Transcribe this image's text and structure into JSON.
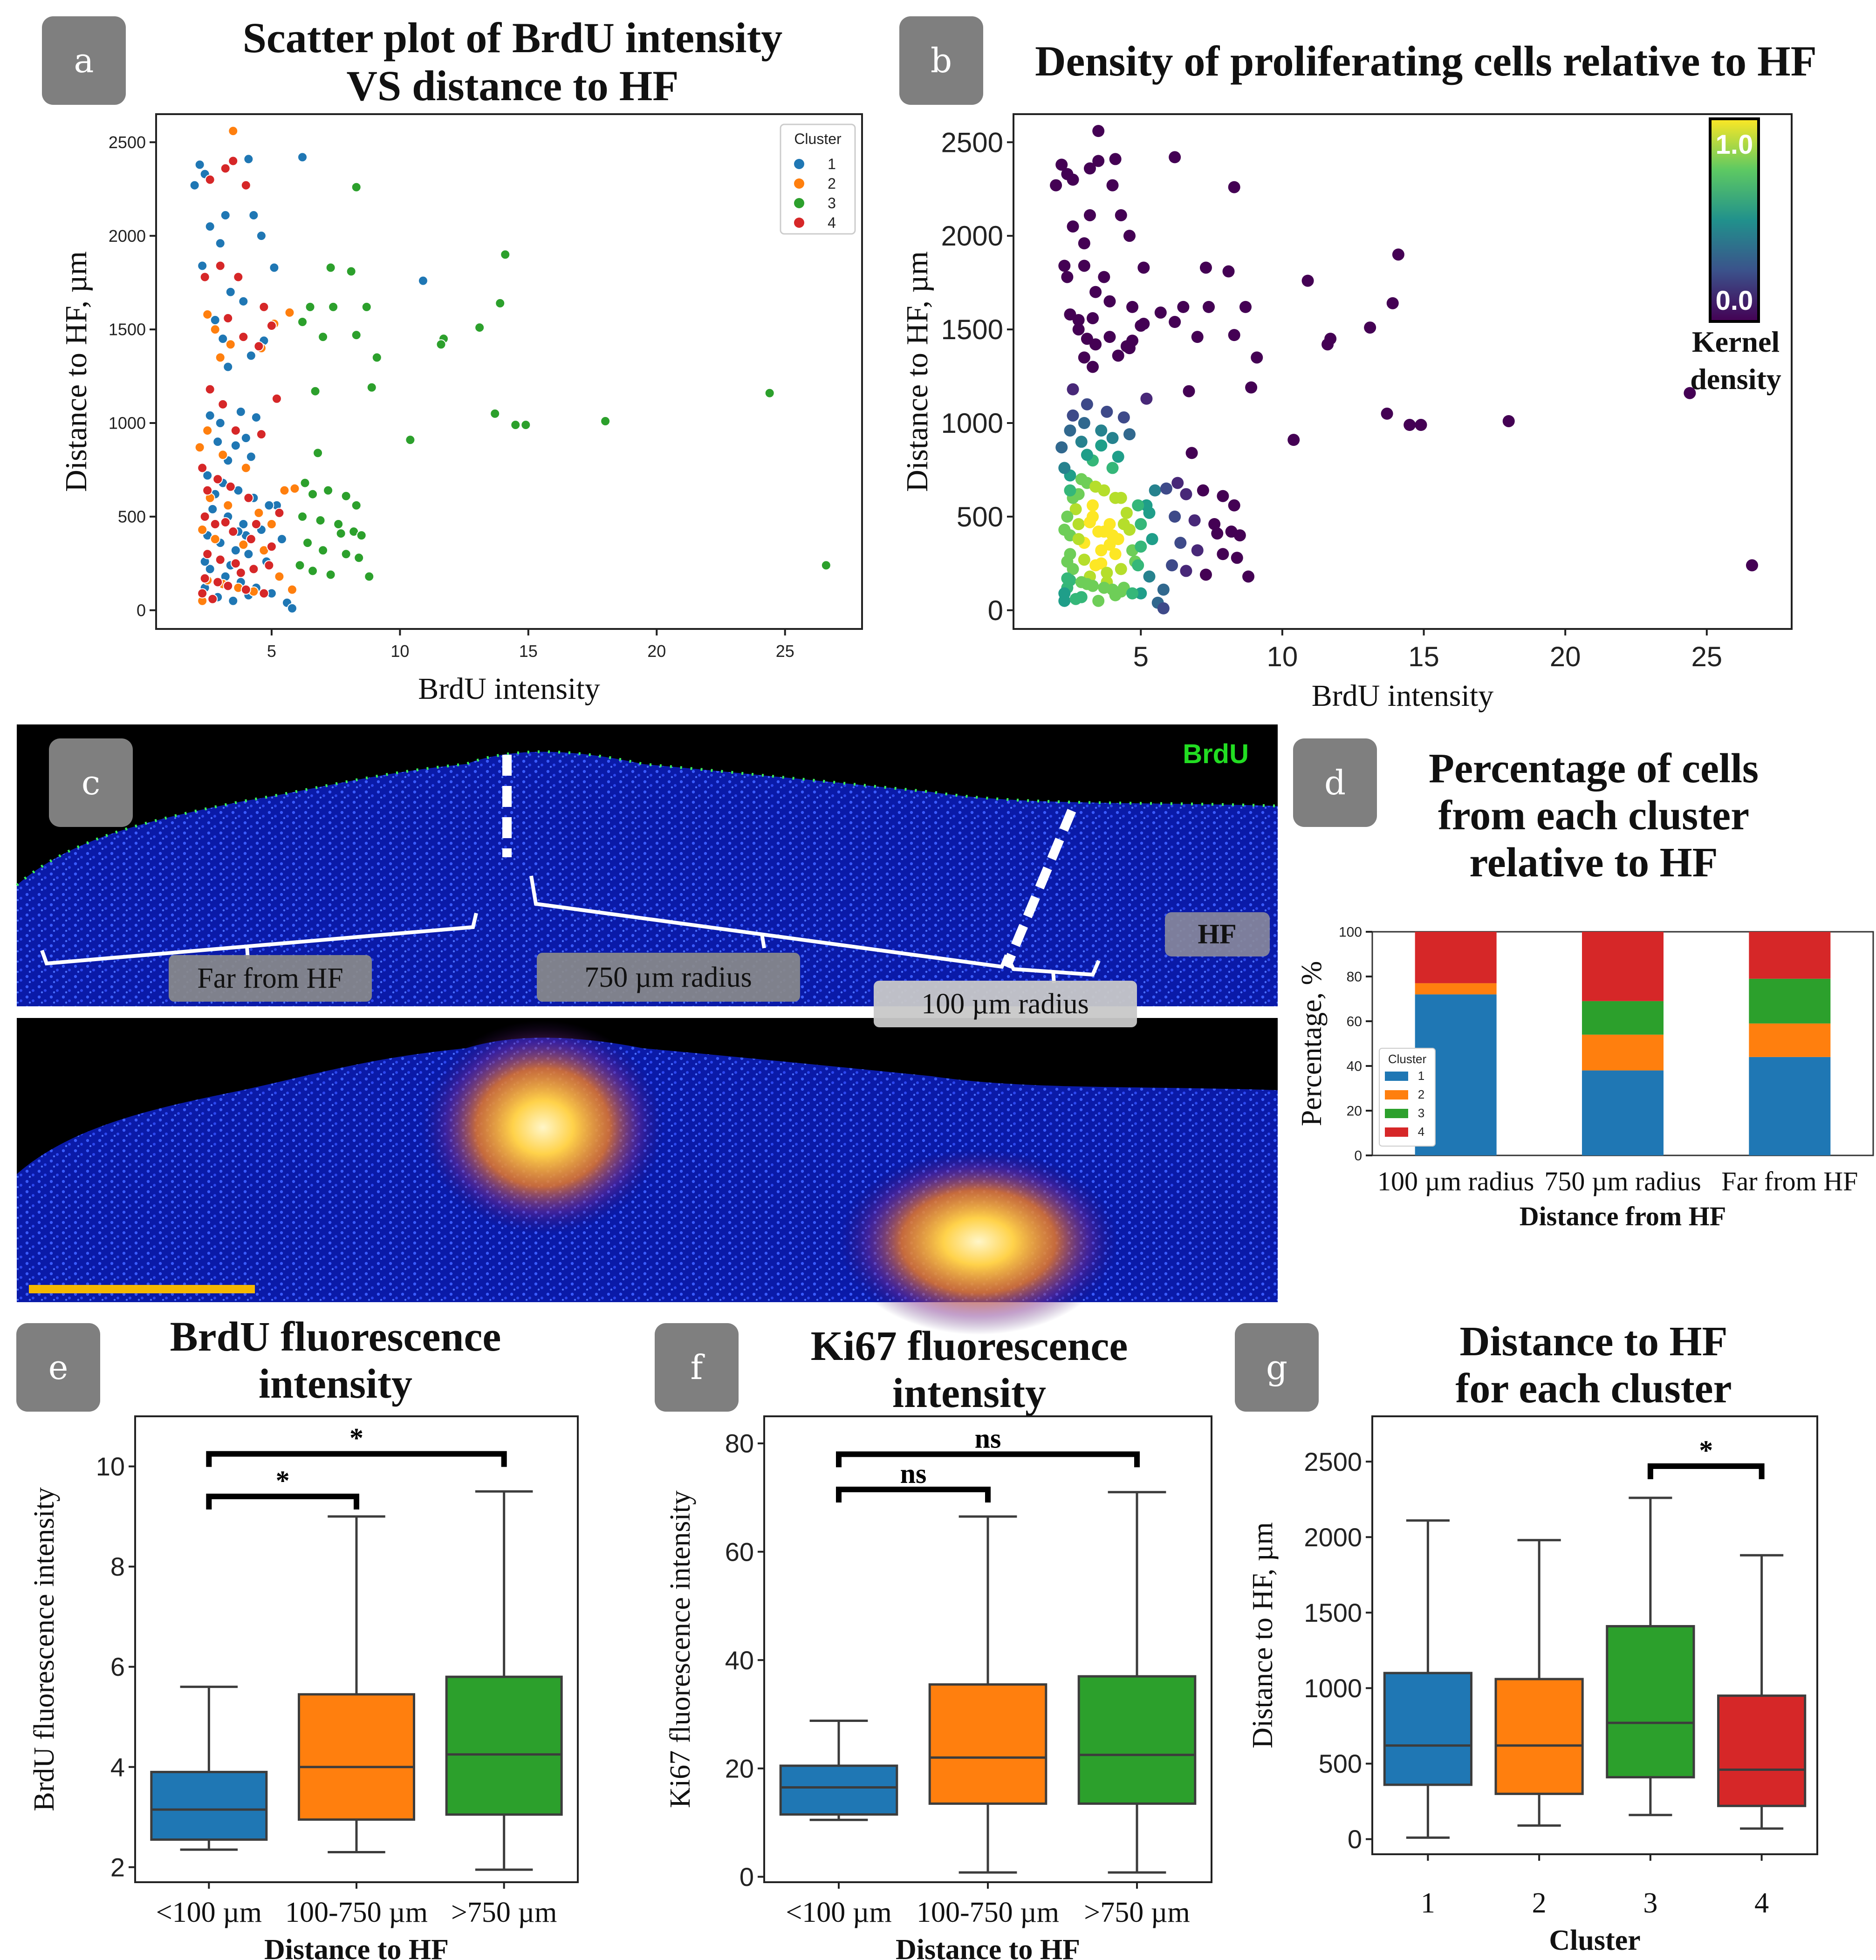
{
  "panels": {
    "a": {
      "badge": "a",
      "title_line1": "Scatter plot of BrdU intensity",
      "title_line2": "VS distance to HF"
    },
    "b": {
      "badge": "b",
      "title": "Density of proliferating cells relative to HF"
    },
    "c": {
      "badge": "c",
      "brdu_label": "BrdU",
      "hf_label": "HF",
      "far_label": "Far from HF",
      "r750_label": "750 µm radius",
      "r100_label": "100 µm radius"
    },
    "d": {
      "badge": "d",
      "title_line1": "Percentage of cells",
      "title_line2": "from each cluster",
      "title_line3": "relative to HF"
    },
    "e": {
      "badge": "e",
      "title_line1": "BrdU fluorescence",
      "title_line2": "intensity"
    },
    "f": {
      "badge": "f",
      "title_line1": "Ki67 fluorescence",
      "title_line2": "intensity"
    },
    "g": {
      "badge": "g",
      "title_line1": "Distance to HF",
      "title_line2": "for each cluster"
    }
  },
  "colors": {
    "c1": "#1f77b4",
    "c2": "#ff7f0e",
    "c3": "#2ca02c",
    "c4": "#d62728",
    "scalebar": "#f5b800",
    "brdu": "#22dd22"
  },
  "chart_data": [
    {
      "id": "a",
      "type": "scatter",
      "title": "Scatter plot of BrdU intensity VS distance to HF",
      "xlabel": "BrdU intensity",
      "ylabel": "Distance to HF, µm",
      "xlim": [
        0.5,
        28
      ],
      "ylim": [
        -100,
        2650
      ],
      "xticks": [
        5,
        10,
        15,
        20,
        25
      ],
      "yticks": [
        0,
        500,
        1000,
        1500,
        2000,
        2500
      ],
      "legend_title": "Cluster",
      "legend": [
        "1",
        "2",
        "3",
        "4"
      ],
      "series": [
        {
          "name": "1",
          "points": [
            [
              2.2,
              2380
            ],
            [
              2.0,
              2270
            ],
            [
              2.4,
              2330
            ],
            [
              2.3,
              1840
            ],
            [
              2.6,
              2050
            ],
            [
              3.0,
              1960
            ],
            [
              3.2,
              2110
            ],
            [
              4.3,
              2110
            ],
            [
              4.6,
              2000
            ],
            [
              4.1,
              2410
            ],
            [
              6.2,
              2420
            ],
            [
              5.1,
              1830
            ],
            [
              3.4,
              1700
            ],
            [
              3.9,
              1650
            ],
            [
              2.8,
              1550
            ],
            [
              3.1,
              1450
            ],
            [
              4.7,
              1440
            ],
            [
              4.2,
              1360
            ],
            [
              3.3,
              1300
            ],
            [
              2.6,
              1040
            ],
            [
              3.0,
              1000
            ],
            [
              3.8,
              1060
            ],
            [
              4.4,
              1030
            ],
            [
              2.9,
              900
            ],
            [
              3.6,
              880
            ],
            [
              4.2,
              820
            ],
            [
              2.5,
              720
            ],
            [
              3.1,
              680
            ],
            [
              3.7,
              640
            ],
            [
              4.3,
              600
            ],
            [
              5.2,
              560
            ],
            [
              2.7,
              540
            ],
            [
              3.3,
              500
            ],
            [
              3.9,
              460
            ],
            [
              4.6,
              430
            ],
            [
              2.5,
              400
            ],
            [
              3.0,
              360
            ],
            [
              3.6,
              320
            ],
            [
              4.1,
              300
            ],
            [
              4.8,
              260
            ],
            [
              2.6,
              220
            ],
            [
              3.2,
              180
            ],
            [
              3.8,
              150
            ],
            [
              4.4,
              120
            ],
            [
              5.0,
              90
            ],
            [
              2.9,
              70
            ],
            [
              3.5,
              50
            ],
            [
              4.1,
              80
            ],
            [
              5.6,
              40
            ],
            [
              5.8,
              10
            ],
            [
              2.4,
              260
            ],
            [
              3.4,
              240
            ],
            [
              4.0,
              400
            ],
            [
              5.4,
              380
            ],
            [
              2.8,
              620
            ],
            [
              3.3,
              800
            ],
            [
              4.0,
              920
            ],
            [
              10.9,
              1760
            ],
            [
              4.9,
              560
            ],
            [
              3.7,
              420
            ],
            [
              2.4,
              120
            ]
          ]
        },
        {
          "name": "2",
          "points": [
            [
              3.5,
              2560
            ],
            [
              2.5,
              1580
            ],
            [
              2.8,
              1500
            ],
            [
              3.4,
              1420
            ],
            [
              4.6,
              1400
            ],
            [
              5.1,
              1530
            ],
            [
              5.7,
              1590
            ],
            [
              3.0,
              1350
            ],
            [
              2.2,
              870
            ],
            [
              2.5,
              960
            ],
            [
              3.1,
              830
            ],
            [
              4.0,
              760
            ],
            [
              2.6,
              600
            ],
            [
              3.3,
              560
            ],
            [
              4.5,
              520
            ],
            [
              5.5,
              640
            ],
            [
              5.9,
              650
            ],
            [
              2.3,
              430
            ],
            [
              2.8,
              380
            ],
            [
              3.9,
              350
            ],
            [
              4.7,
              320
            ],
            [
              2.5,
              160
            ],
            [
              3.1,
              140
            ],
            [
              3.7,
              120
            ],
            [
              4.3,
              100
            ],
            [
              2.3,
              50
            ],
            [
              5.3,
              180
            ],
            [
              5.8,
              110
            ],
            [
              5.0,
              460
            ]
          ]
        },
        {
          "name": "3",
          "points": [
            [
              8.3,
              2260
            ],
            [
              14.1,
              1900
            ],
            [
              7.3,
              1830
            ],
            [
              8.1,
              1810
            ],
            [
              13.9,
              1640
            ],
            [
              6.5,
              1620
            ],
            [
              7.4,
              1620
            ],
            [
              6.2,
              1540
            ],
            [
              8.7,
              1620
            ],
            [
              7.0,
              1460
            ],
            [
              8.3,
              1470
            ],
            [
              11.7,
              1450
            ],
            [
              11.6,
              1420
            ],
            [
              13.1,
              1510
            ],
            [
              9.1,
              1350
            ],
            [
              8.9,
              1190
            ],
            [
              6.7,
              1170
            ],
            [
              13.7,
              1050
            ],
            [
              14.5,
              990
            ],
            [
              14.9,
              990
            ],
            [
              18.0,
              1010
            ],
            [
              24.4,
              1160
            ],
            [
              10.4,
              910
            ],
            [
              6.8,
              840
            ],
            [
              6.3,
              680
            ],
            [
              6.6,
              620
            ],
            [
              7.2,
              640
            ],
            [
              7.9,
              610
            ],
            [
              8.3,
              560
            ],
            [
              6.2,
              500
            ],
            [
              6.9,
              480
            ],
            [
              7.6,
              460
            ],
            [
              8.2,
              420
            ],
            [
              8.5,
              400
            ],
            [
              6.4,
              360
            ],
            [
              7.0,
              320
            ],
            [
              7.9,
              300
            ],
            [
              8.4,
              280
            ],
            [
              6.1,
              240
            ],
            [
              6.6,
              210
            ],
            [
              7.3,
              190
            ],
            [
              8.8,
              180
            ],
            [
              26.6,
              240
            ],
            [
              7.7,
              410
            ]
          ]
        },
        {
          "name": "4",
          "points": [
            [
              2.6,
              2300
            ],
            [
              3.2,
              2360
            ],
            [
              3.5,
              2400
            ],
            [
              4.0,
              2270
            ],
            [
              2.4,
              1780
            ],
            [
              3.0,
              1840
            ],
            [
              3.7,
              1780
            ],
            [
              4.7,
              1620
            ],
            [
              5.0,
              1520
            ],
            [
              3.3,
              1560
            ],
            [
              3.9,
              1460
            ],
            [
              4.5,
              1410
            ],
            [
              5.2,
              1130
            ],
            [
              2.6,
              1180
            ],
            [
              3.1,
              1100
            ],
            [
              3.6,
              960
            ],
            [
              4.6,
              940
            ],
            [
              2.3,
              760
            ],
            [
              2.9,
              700
            ],
            [
              3.4,
              660
            ],
            [
              4.1,
              600
            ],
            [
              5.3,
              520
            ],
            [
              2.4,
              500
            ],
            [
              2.8,
              460
            ],
            [
              3.5,
              420
            ],
            [
              4.2,
              380
            ],
            [
              5.0,
              340
            ],
            [
              2.5,
              300
            ],
            [
              3.0,
              270
            ],
            [
              3.6,
              250
            ],
            [
              4.3,
              220
            ],
            [
              2.4,
              170
            ],
            [
              2.9,
              150
            ],
            [
              3.3,
              130
            ],
            [
              4.0,
              110
            ],
            [
              4.7,
              90
            ],
            [
              2.3,
              90
            ],
            [
              2.7,
              60
            ],
            [
              3.8,
              200
            ],
            [
              4.9,
              240
            ],
            [
              3.2,
              470
            ],
            [
              4.4,
              460
            ],
            [
              2.5,
              640
            ]
          ]
        }
      ]
    },
    {
      "id": "b",
      "type": "scatter",
      "title": "Density of proliferating cells relative to HF",
      "xlabel": "BrdU intensity",
      "ylabel": "Distance to HF, µm",
      "xlim": [
        0.5,
        28
      ],
      "ylim": [
        -100,
        2650
      ],
      "xticks": [
        5,
        10,
        15,
        20,
        25
      ],
      "yticks": [
        0,
        500,
        1000,
        1500,
        2000,
        2500
      ],
      "colorbar": {
        "label_line1": "Kernel",
        "label_line2": "density",
        "min_label": "0.0",
        "max_label": "1.0"
      },
      "note": "same points as panel a, coloured by kernel density (viridis)"
    },
    {
      "id": "d",
      "type": "bar",
      "stacked": true,
      "title": "Percentage of cells from each cluster relative to HF",
      "xlabel": "Distance from HF",
      "ylabel": "Percentage, %",
      "ylim": [
        0,
        100
      ],
      "yticks": [
        0,
        20,
        40,
        60,
        80,
        100
      ],
      "categories": [
        "100 µm radius",
        "750 µm radius",
        "Far from HF"
      ],
      "legend_title": "Cluster",
      "series": [
        {
          "name": "1",
          "values": [
            72,
            38,
            44
          ]
        },
        {
          "name": "2",
          "values": [
            5,
            16,
            15
          ]
        },
        {
          "name": "3",
          "values": [
            0,
            15,
            20
          ]
        },
        {
          "name": "4",
          "values": [
            23,
            31,
            21
          ]
        }
      ]
    },
    {
      "id": "e",
      "type": "box",
      "title": "BrdU fluorescence intensity",
      "xlabel": "Distance to HF",
      "ylabel": "BrdU fluorescence intensity",
      "ylim": [
        1.7,
        11
      ],
      "yticks": [
        2,
        4,
        6,
        8,
        10
      ],
      "categories": [
        "<100 µm",
        "100-750 µm",
        ">750 µm"
      ],
      "boxes": [
        {
          "whislo": 2.35,
          "q1": 2.55,
          "med": 3.15,
          "q3": 3.9,
          "whishi": 5.6
        },
        {
          "whislo": 2.3,
          "q1": 2.95,
          "med": 4.0,
          "q3": 5.45,
          "whishi": 9.0
        },
        {
          "whislo": 1.95,
          "q1": 3.05,
          "med": 4.25,
          "q3": 5.8,
          "whishi": 9.5
        }
      ],
      "significance": [
        {
          "from": 0,
          "to": 1,
          "y": 9.4,
          "label": "*"
        },
        {
          "from": 0,
          "to": 2,
          "y": 10.25,
          "label": "*"
        }
      ]
    },
    {
      "id": "f",
      "type": "box",
      "title": "Ki67 fluorescence intensity",
      "xlabel": "Distance to HF",
      "ylabel": "Ki67 fluorescence intensity",
      "ylim": [
        -1,
        85
      ],
      "yticks": [
        0,
        20,
        40,
        60,
        80
      ],
      "categories": [
        "<100 µm",
        "100-750 µm",
        ">750 µm"
      ],
      "boxes": [
        {
          "whislo": 10.5,
          "q1": 11.5,
          "med": 16.5,
          "q3": 20.5,
          "whishi": 28.8
        },
        {
          "whislo": 0.8,
          "q1": 13.5,
          "med": 22,
          "q3": 35.5,
          "whishi": 66.5
        },
        {
          "whislo": 0.8,
          "q1": 13.5,
          "med": 22.5,
          "q3": 37,
          "whishi": 71
        }
      ],
      "significance": [
        {
          "from": 0,
          "to": 1,
          "y": 71.5,
          "label": "ns"
        },
        {
          "from": 0,
          "to": 2,
          "y": 78,
          "label": "ns"
        }
      ]
    },
    {
      "id": "g",
      "type": "box",
      "title": "Distance to HF for each cluster",
      "xlabel": "Cluster",
      "ylabel": "Distance to HF, µm",
      "ylim": [
        -100,
        2800
      ],
      "yticks": [
        0,
        500,
        1000,
        1500,
        2000,
        2500
      ],
      "categories": [
        "1",
        "2",
        "3",
        "4"
      ],
      "boxes": [
        {
          "whislo": 10,
          "q1": 360,
          "med": 620,
          "q3": 1100,
          "whishi": 2110
        },
        {
          "whislo": 90,
          "q1": 300,
          "med": 620,
          "q3": 1060,
          "whishi": 1980
        },
        {
          "whislo": 160,
          "q1": 410,
          "med": 770,
          "q3": 1410,
          "whishi": 2260
        },
        {
          "whislo": 70,
          "q1": 220,
          "med": 460,
          "q3": 950,
          "whishi": 1880
        }
      ],
      "significance": [
        {
          "from": 2,
          "to": 3,
          "y": 2470,
          "label": "*"
        }
      ]
    }
  ]
}
